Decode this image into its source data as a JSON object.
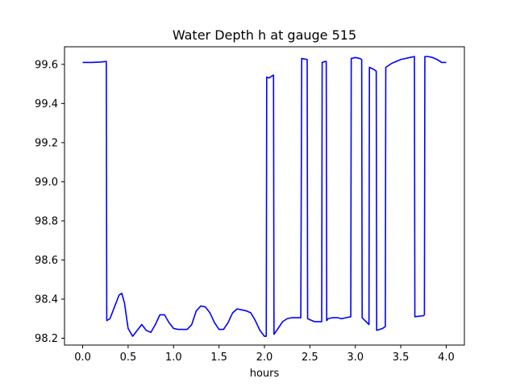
{
  "chart_data": {
    "type": "line",
    "title": "Water Depth h at gauge 515",
    "xlabel": "hours",
    "ylabel": "",
    "xlim": [
      -0.2,
      4.2
    ],
    "ylim": [
      98.165,
      99.69
    ],
    "xticks": [
      0.0,
      0.5,
      1.0,
      1.5,
      2.0,
      2.5,
      3.0,
      3.5,
      4.0
    ],
    "xtick_labels": [
      "0.0",
      "0.5",
      "1.0",
      "1.5",
      "2.0",
      "2.5",
      "3.0",
      "3.5",
      "4.0"
    ],
    "yticks": [
      98.2,
      98.4,
      98.6,
      98.8,
      99.0,
      99.2,
      99.4,
      99.6
    ],
    "ytick_labels": [
      "98.2",
      "98.4",
      "98.6",
      "98.8",
      "99.0",
      "99.2",
      "99.4",
      "99.6"
    ],
    "grid": false,
    "series": [
      {
        "color": "#0000ff",
        "x": [
          0.0,
          0.1,
          0.2,
          0.26,
          0.265,
          0.3,
          0.35,
          0.4,
          0.43,
          0.46,
          0.5,
          0.55,
          0.6,
          0.65,
          0.7,
          0.75,
          0.8,
          0.85,
          0.9,
          0.95,
          1.0,
          1.05,
          1.1,
          1.15,
          1.2,
          1.25,
          1.3,
          1.35,
          1.4,
          1.45,
          1.5,
          1.55,
          1.6,
          1.65,
          1.7,
          1.75,
          1.8,
          1.85,
          1.9,
          1.95,
          2.0,
          2.02,
          2.025,
          2.05,
          2.08,
          2.1,
          2.105,
          2.15,
          2.2,
          2.25,
          2.3,
          2.35,
          2.4,
          2.41,
          2.47,
          2.475,
          2.5,
          2.55,
          2.6,
          2.63,
          2.635,
          2.67,
          2.68,
          2.685,
          2.7,
          2.75,
          2.8,
          2.85,
          2.9,
          2.95,
          2.955,
          3.0,
          3.05,
          3.07,
          3.075,
          3.15,
          3.155,
          3.2,
          3.23,
          3.235,
          3.3,
          3.33,
          3.335,
          3.4,
          3.5,
          3.6,
          3.65,
          3.655,
          3.75,
          3.76,
          3.765,
          3.8,
          3.85,
          3.9,
          3.95,
          4.0
        ],
        "y": [
          99.61,
          99.61,
          99.612,
          99.615,
          98.29,
          98.3,
          98.36,
          98.42,
          98.43,
          98.38,
          98.25,
          98.21,
          98.24,
          98.27,
          98.24,
          98.23,
          98.27,
          98.32,
          98.32,
          98.28,
          98.25,
          98.245,
          98.245,
          98.245,
          98.27,
          98.34,
          98.365,
          98.36,
          98.33,
          98.28,
          98.245,
          98.245,
          98.28,
          98.33,
          98.35,
          98.345,
          98.34,
          98.33,
          98.29,
          98.24,
          98.21,
          98.21,
          99.535,
          99.53,
          99.54,
          99.545,
          98.22,
          98.25,
          98.285,
          98.3,
          98.305,
          98.305,
          98.305,
          99.63,
          99.625,
          98.3,
          98.295,
          98.285,
          98.285,
          98.285,
          99.61,
          99.615,
          99.615,
          98.29,
          98.3,
          98.305,
          98.305,
          98.3,
          98.305,
          98.31,
          99.63,
          99.635,
          99.63,
          99.625,
          98.305,
          98.27,
          99.585,
          99.575,
          99.565,
          98.24,
          98.25,
          98.26,
          99.585,
          99.605,
          99.625,
          99.635,
          99.64,
          98.31,
          98.315,
          98.32,
          99.64,
          99.64,
          99.635,
          99.625,
          99.61,
          99.61
        ]
      }
    ]
  }
}
